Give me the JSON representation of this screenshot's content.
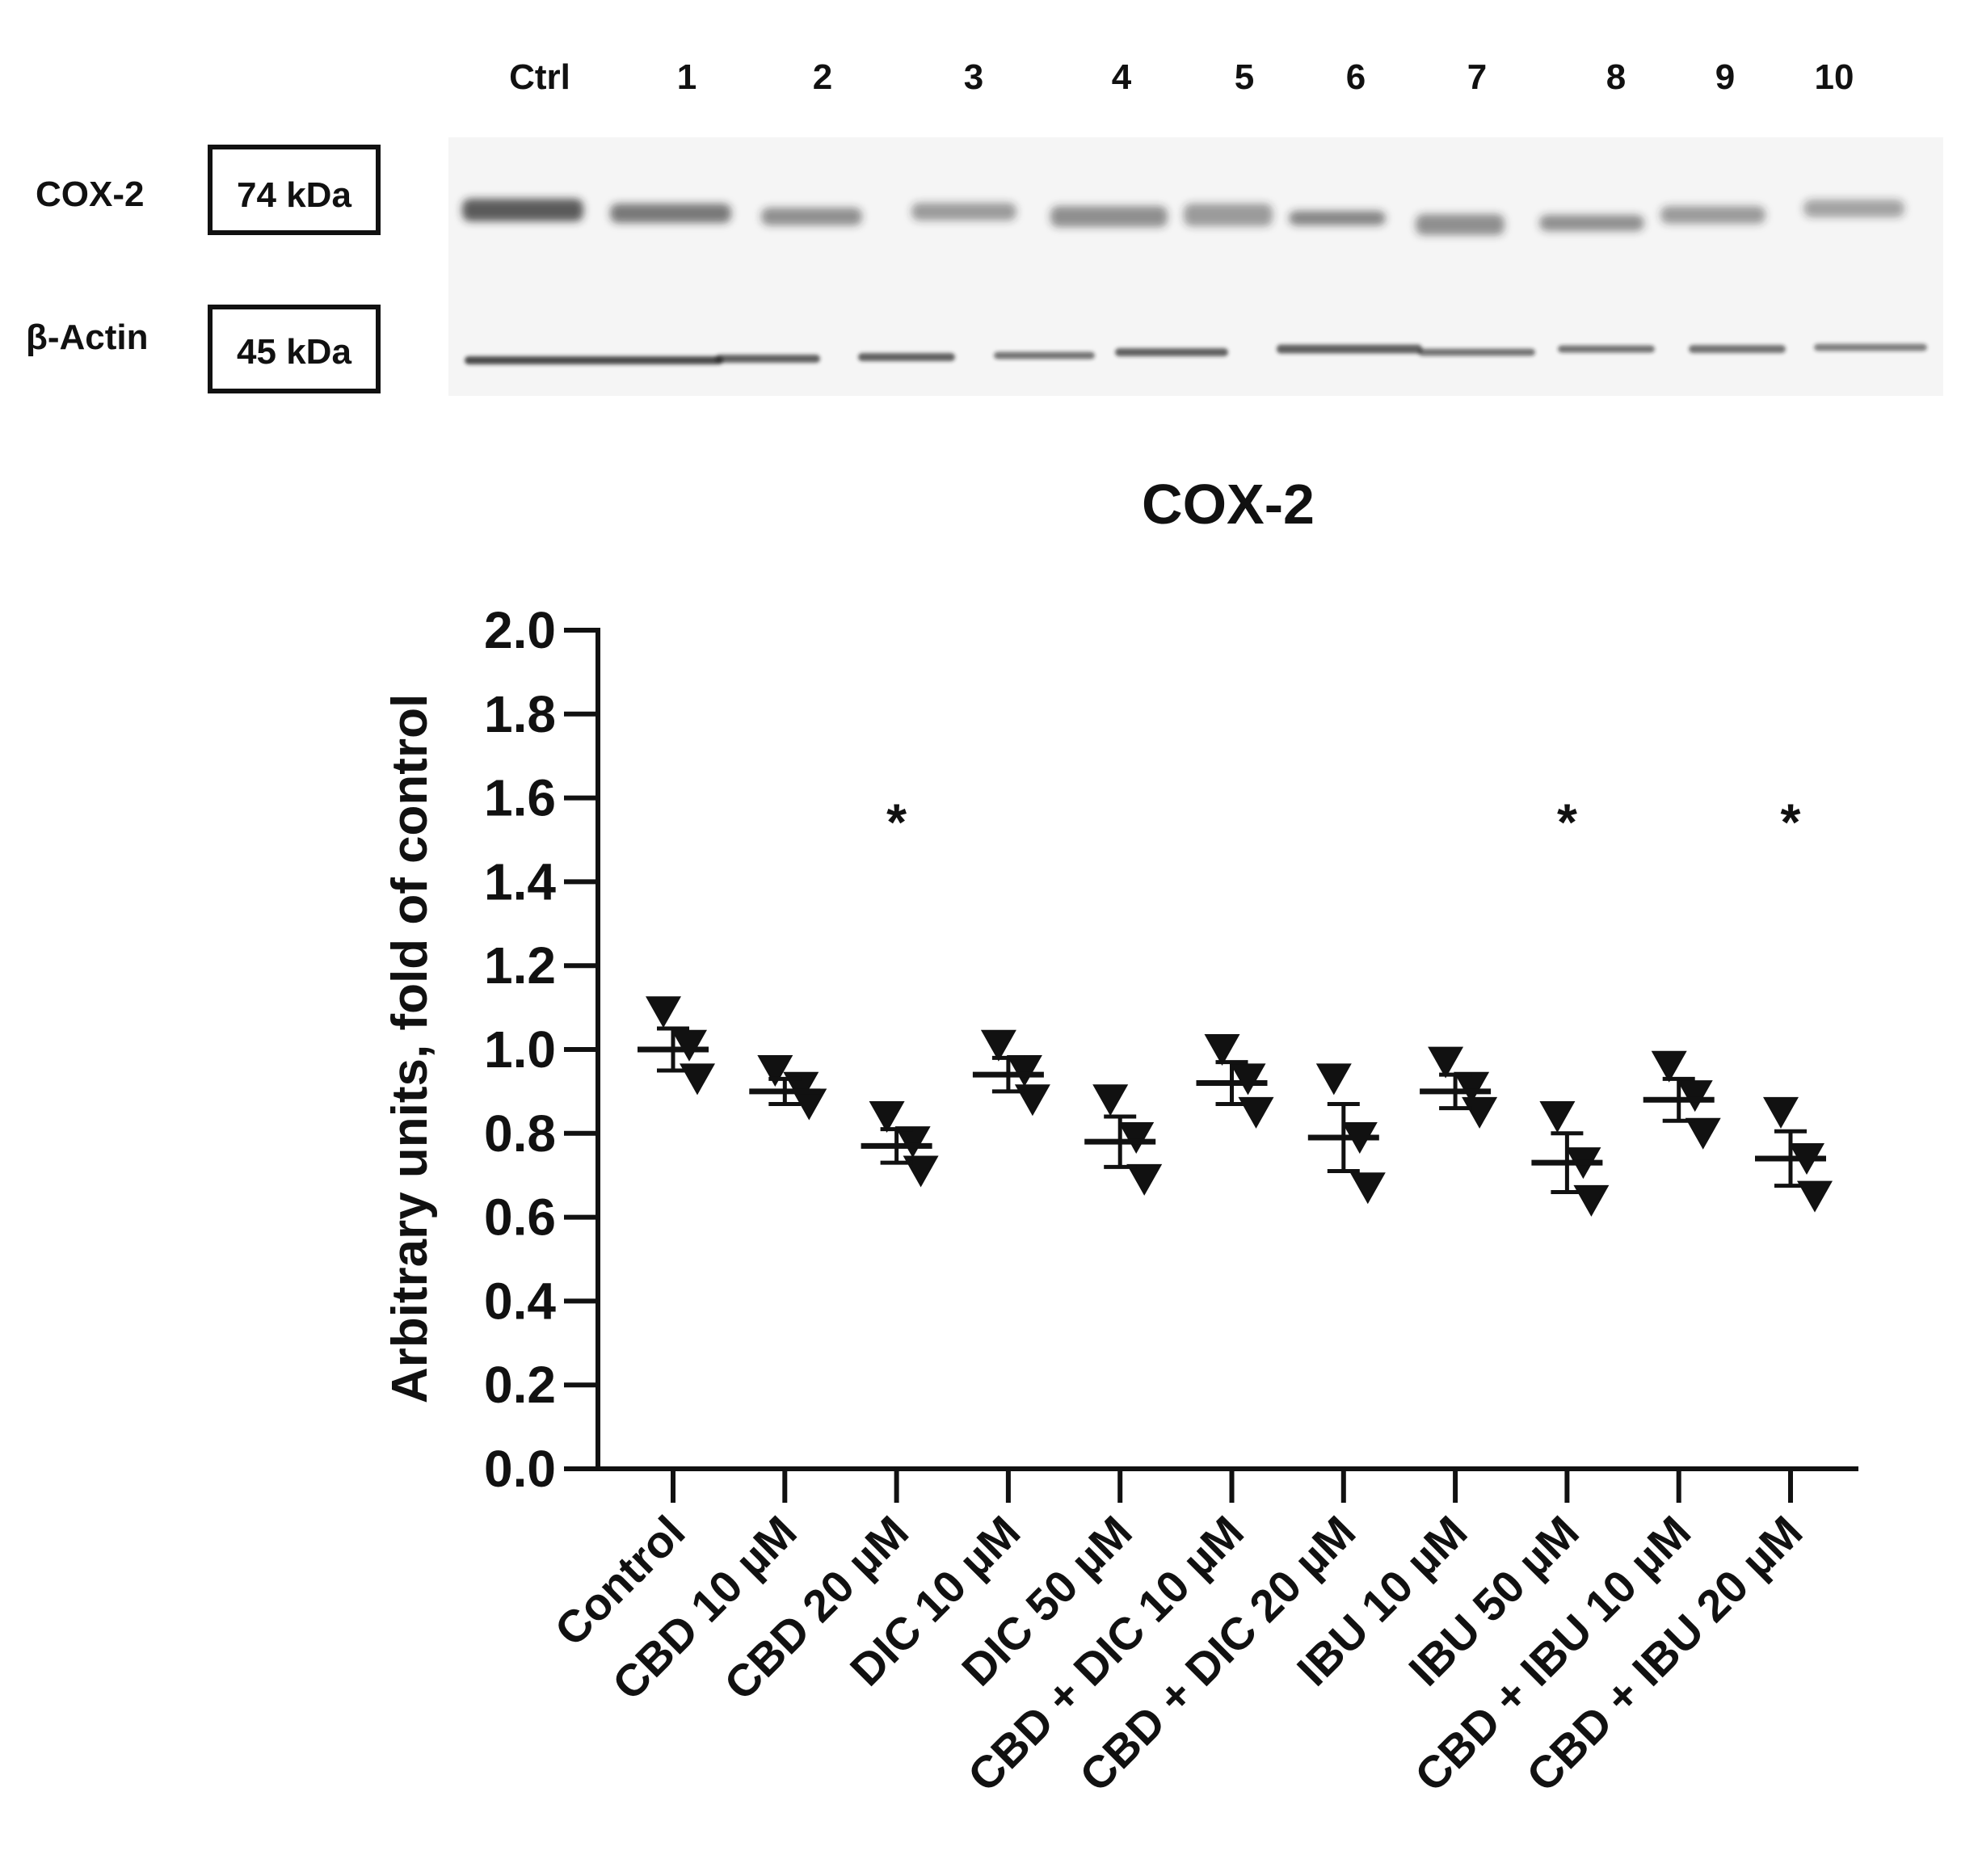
{
  "blot": {
    "lanes": [
      "Ctrl",
      "1",
      "2",
      "3",
      "4",
      "5",
      "6",
      "7",
      "8",
      "9",
      "10"
    ],
    "rows": [
      {
        "protein": "COX-2",
        "weight": "74 kDa"
      },
      {
        "protein": "β-Actin",
        "weight": "45 kDa"
      }
    ]
  },
  "chart_data": {
    "type": "scatter",
    "title": "COX-2",
    "xlabel": "",
    "ylabel": "Arbitrary units, fold of control",
    "ylim": [
      0,
      2.0
    ],
    "yticks": [
      "0.0",
      "0.2",
      "0.4",
      "0.6",
      "0.8",
      "1.0",
      "1.2",
      "1.4",
      "1.6",
      "1.8",
      "2.0"
    ],
    "categories": [
      "Control",
      "CBD 10 µM",
      "CBD 20 µM",
      "DIC 10 µM",
      "DIC 50 µM",
      "CBD + DIC 10 µM",
      "CBD + DIC 20 µM",
      "IBU 10 µM",
      "IBU 50 µM",
      "CBD + IBU 10 µM",
      "CBD + IBU 20 µM"
    ],
    "points": [
      [
        1.09,
        1.01,
        0.93
      ],
      [
        0.95,
        0.91,
        0.87
      ],
      [
        0.84,
        0.78,
        0.71
      ],
      [
        1.01,
        0.95,
        0.88
      ],
      [
        0.88,
        0.79,
        0.69
      ],
      [
        1.0,
        0.93,
        0.85
      ],
      [
        0.93,
        0.79,
        0.67
      ],
      [
        0.97,
        0.91,
        0.85
      ],
      [
        0.84,
        0.73,
        0.64
      ],
      [
        0.96,
        0.89,
        0.8
      ],
      [
        0.85,
        0.74,
        0.65
      ]
    ],
    "mean": [
      1.0,
      0.9,
      0.77,
      0.94,
      0.78,
      0.92,
      0.79,
      0.9,
      0.73,
      0.88,
      0.74
    ],
    "sem": [
      0.05,
      0.03,
      0.04,
      0.04,
      0.06,
      0.05,
      0.08,
      0.04,
      0.07,
      0.05,
      0.065
    ],
    "significance": [
      "",
      "",
      "*",
      "",
      "",
      "",
      "",
      "",
      "*",
      "",
      "*"
    ],
    "marker": "triangle-down",
    "color": "#111111"
  }
}
